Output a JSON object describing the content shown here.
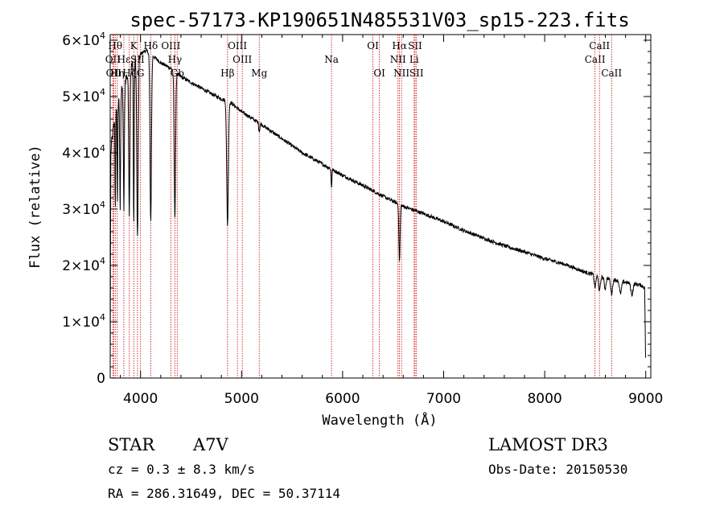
{
  "chart_data": {
    "type": "line",
    "title": "spec-57173-KP190651N485531V03_sp15-223.fits",
    "xlabel": "Wavelength (Å)",
    "ylabel": "Flux (relative)",
    "xlim": [
      3700,
      9050
    ],
    "ylim": [
      0,
      61000
    ],
    "x_ticks": [
      4000,
      5000,
      6000,
      7000,
      8000,
      9000
    ],
    "y_ticks": [
      {
        "value": 0,
        "mantissa": "0",
        "exp": ""
      },
      {
        "value": 10000,
        "mantissa": "1×10",
        "exp": "4"
      },
      {
        "value": 20000,
        "mantissa": "2×10",
        "exp": "4"
      },
      {
        "value": 30000,
        "mantissa": "3×10",
        "exp": "4"
      },
      {
        "value": 40000,
        "mantissa": "4×10",
        "exp": "4"
      },
      {
        "value": 50000,
        "mantissa": "5×10",
        "exp": "4"
      },
      {
        "value": 60000,
        "mantissa": "6×10",
        "exp": "4"
      }
    ],
    "spectrum": {
      "name": "flux",
      "color": "#000000",
      "continuum": [
        [
          3700,
          200
        ],
        [
          3705,
          39000
        ],
        [
          3710,
          41000
        ],
        [
          3730,
          44000
        ],
        [
          3760,
          47000
        ],
        [
          3800,
          50000
        ],
        [
          3850,
          53000
        ],
        [
          3900,
          55000
        ],
        [
          3950,
          56500
        ],
        [
          4000,
          57500
        ],
        [
          4050,
          58200
        ],
        [
          4100,
          57600
        ],
        [
          4200,
          56000
        ],
        [
          4300,
          55000
        ],
        [
          4400,
          53500
        ],
        [
          4500,
          52500
        ],
        [
          4600,
          51500
        ],
        [
          4700,
          50500
        ],
        [
          4800,
          49600
        ],
        [
          4900,
          48800
        ],
        [
          5000,
          47300
        ],
        [
          5200,
          45000
        ],
        [
          5400,
          42500
        ],
        [
          5600,
          40000
        ],
        [
          5800,
          38000
        ],
        [
          6000,
          36000
        ],
        [
          6200,
          34200
        ],
        [
          6400,
          32300
        ],
        [
          6600,
          30500
        ],
        [
          6800,
          29200
        ],
        [
          7000,
          27800
        ],
        [
          7200,
          26200
        ],
        [
          7400,
          24800
        ],
        [
          7600,
          23500
        ],
        [
          7800,
          22400
        ],
        [
          8000,
          21200
        ],
        [
          8200,
          20200
        ],
        [
          8400,
          18800
        ],
        [
          8600,
          17800
        ],
        [
          8800,
          17000
        ],
        [
          8950,
          16500
        ],
        [
          8990,
          16000
        ],
        [
          9000,
          500
        ]
      ],
      "absorption_lines": [
        {
          "center": 3750,
          "depth": 16000,
          "width": 3
        },
        {
          "center": 3771,
          "depth": 18000,
          "width": 3
        },
        {
          "center": 3798,
          "depth": 20000,
          "width": 4
        },
        {
          "center": 3835,
          "depth": 22000,
          "width": 5
        },
        {
          "center": 3889,
          "depth": 25000,
          "width": 6
        },
        {
          "center": 3933,
          "depth": 29000,
          "width": 4
        },
        {
          "center": 3970,
          "depth": 32000,
          "width": 7
        },
        {
          "center": 4101,
          "depth": 30000,
          "width": 7
        },
        {
          "center": 4340,
          "depth": 26000,
          "width": 7
        },
        {
          "center": 4861,
          "depth": 22000,
          "width": 8
        },
        {
          "center": 5175,
          "depth": 1500,
          "width": 5
        },
        {
          "center": 5890,
          "depth": 3200,
          "width": 4
        },
        {
          "center": 6563,
          "depth": 10000,
          "width": 6
        },
        {
          "center": 8498,
          "depth": 2200,
          "width": 8
        },
        {
          "center": 8542,
          "depth": 2600,
          "width": 9
        },
        {
          "center": 8598,
          "depth": 2000,
          "width": 8
        },
        {
          "center": 8662,
          "depth": 2600,
          "width": 9
        },
        {
          "center": 8750,
          "depth": 2200,
          "width": 10
        },
        {
          "center": 8863,
          "depth": 2000,
          "width": 10
        }
      ]
    },
    "line_markers": [
      {
        "wavelength": 3727,
        "label": "OII",
        "row": 2
      },
      {
        "wavelength": 3734,
        "label": "OII",
        "row": 3
      },
      {
        "wavelength": 3750,
        "label": "Hθ",
        "row": 1
      },
      {
        "wavelength": 3770,
        "label": "Hη",
        "row": 3
      },
      {
        "wavelength": 3835,
        "label": "Hε",
        "row": 2
      },
      {
        "wavelength": 3889,
        "label": "Hζ",
        "row": 3
      },
      {
        "wavelength": 3933,
        "label": "K",
        "row": 1
      },
      {
        "wavelength": 3970,
        "label": "SII",
        "row": 2
      },
      {
        "wavelength": 4000,
        "label": "G",
        "row": 3
      },
      {
        "wavelength": 4101,
        "label": "Hδ",
        "row": 1
      },
      {
        "wavelength": 4300,
        "label": "OIII",
        "row": 1
      },
      {
        "wavelength": 4340,
        "label": "Hγ",
        "row": 2
      },
      {
        "wavelength": 4363,
        "label": "Gb",
        "row": 3
      },
      {
        "wavelength": 4861,
        "label": "Hβ",
        "row": 3
      },
      {
        "wavelength": 4959,
        "label": "OIII",
        "row": 1
      },
      {
        "wavelength": 5007,
        "label": "OIII",
        "row": 2
      },
      {
        "wavelength": 5175,
        "label": "Mg",
        "row": 3
      },
      {
        "wavelength": 5890,
        "label": "Na",
        "row": 2
      },
      {
        "wavelength": 6300,
        "label": "OI",
        "row": 1
      },
      {
        "wavelength": 6364,
        "label": "OI",
        "row": 3
      },
      {
        "wavelength": 6548,
        "label": "NII",
        "row": 2
      },
      {
        "wavelength": 6563,
        "label": "Hα",
        "row": 1
      },
      {
        "wavelength": 6583,
        "label": "NII",
        "row": 3
      },
      {
        "wavelength": 6717,
        "label": "SII",
        "row": 1
      },
      {
        "wavelength": 6708,
        "label": "Li",
        "row": 2
      },
      {
        "wavelength": 6731,
        "label": "SII",
        "row": 3
      },
      {
        "wavelength": 8498,
        "label": "CaII",
        "row": 2
      },
      {
        "wavelength": 8542,
        "label": "CaII",
        "row": 1
      },
      {
        "wavelength": 8662,
        "label": "CaII",
        "row": 3
      }
    ]
  },
  "info": {
    "object_class": "STAR",
    "subclass": "A7V",
    "redshift": "cz = 0.3 ± 8.3 km/s",
    "coordinates": "RA = 286.31649, DEC =  50.37114",
    "survey": "LAMOST DR3",
    "obs_date": "Obs-Date: 20150530"
  }
}
